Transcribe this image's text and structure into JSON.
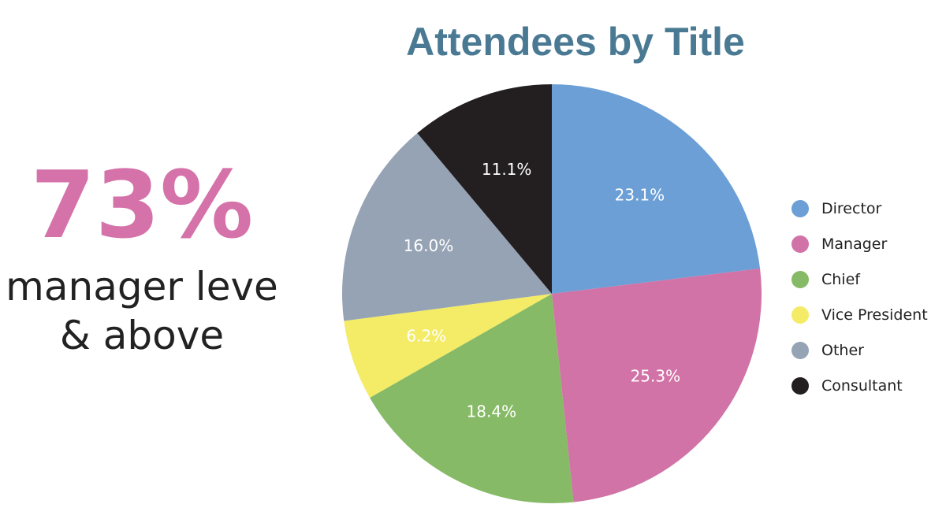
{
  "stat": {
    "value": "73%",
    "caption_line1": "manager leve",
    "caption_line2": "& above",
    "color": "#d472a9"
  },
  "chart_data": {
    "type": "pie",
    "title": "Attendees by Title",
    "title_color": "#4a7a93",
    "legend_position": "right",
    "slices": [
      {
        "name": "Director",
        "value": 23.1,
        "label": "23.1%",
        "color": "#6b9fd6"
      },
      {
        "name": "Manager",
        "value": 25.3,
        "label": "25.3%",
        "color": "#d173a6"
      },
      {
        "name": "Chief",
        "value": 18.4,
        "label": "18.4%",
        "color": "#87ba66"
      },
      {
        "name": "Vice President",
        "value": 6.2,
        "label": "6.2%",
        "color": "#f4ec66"
      },
      {
        "name": "Other",
        "value": 16.0,
        "label": "16.0%",
        "color": "#96a3b4"
      },
      {
        "name": "Consultant",
        "value": 11.1,
        "label": "11.1%",
        "color": "#231f20"
      }
    ]
  }
}
